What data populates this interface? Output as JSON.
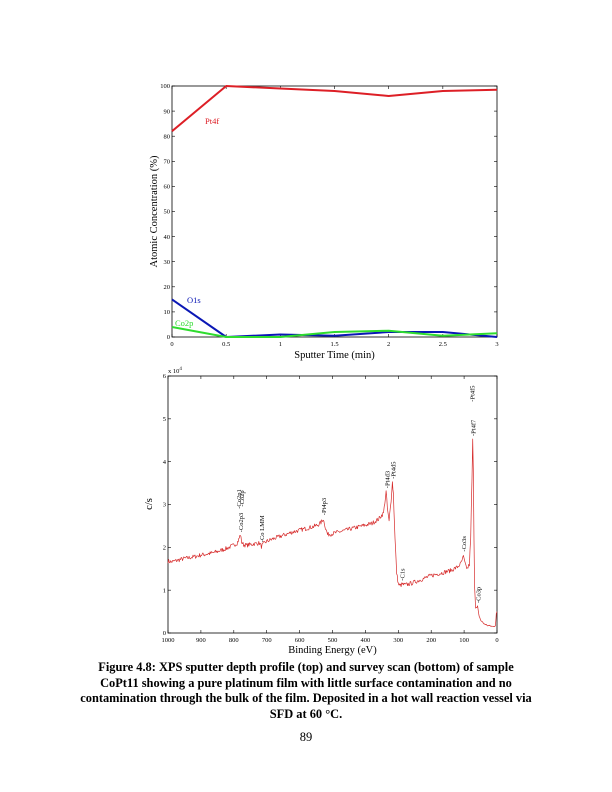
{
  "chart_data": [
    {
      "type": "line",
      "xlabel": "Sputter Time (min)",
      "ylabel": "Atomic Concentration (%)",
      "xlim": [
        0,
        3
      ],
      "ylim": [
        0,
        100
      ],
      "xticks": [
        "0",
        "0.5",
        "1",
        "1.5",
        "2",
        "2.5",
        "3"
      ],
      "yticks": [
        "0",
        "10",
        "20",
        "30",
        "40",
        "50",
        "60",
        "70",
        "80",
        "90",
        "100"
      ],
      "grid": false,
      "series": [
        {
          "name": "Pt4f",
          "color": "#dd1f26",
          "x": [
            0,
            0.5,
            1,
            1.5,
            2,
            2.5,
            3
          ],
          "y": [
            82,
            100,
            99,
            98,
            96,
            98,
            98.5
          ]
        },
        {
          "name": "O1s",
          "color": "#0a17b5",
          "x": [
            0,
            0.5,
            1,
            1.5,
            2,
            2.5,
            3
          ],
          "y": [
            15,
            0,
            1,
            0.5,
            2,
            2,
            0
          ]
        },
        {
          "name": "Co2p",
          "color": "#2fdc2f",
          "x": [
            0,
            0.5,
            1,
            1.5,
            2,
            2.5,
            3
          ],
          "y": [
            4,
            0,
            0,
            2,
            2.5,
            0.5,
            1.5
          ]
        }
      ]
    },
    {
      "type": "line",
      "xlabel": "Binding Energy (eV)",
      "ylabel": "c/s",
      "yunit_label": "x 10",
      "yunit_exp": "4",
      "xlim": [
        1000,
        0
      ],
      "ylim": [
        0,
        6
      ],
      "xticks": [
        "1000",
        "900",
        "800",
        "700",
        "600",
        "500",
        "400",
        "300",
        "200",
        "100",
        "0"
      ],
      "yticks": [
        "0",
        "1",
        "2",
        "3",
        "4",
        "5",
        "6"
      ],
      "series_color": "#d62a2a",
      "series_points": [
        [
          1000,
          1.68
        ],
        [
          990,
          1.66
        ],
        [
          970,
          1.7
        ],
        [
          950,
          1.74
        ],
        [
          920,
          1.78
        ],
        [
          900,
          1.82
        ],
        [
          870,
          1.86
        ],
        [
          850,
          1.9
        ],
        [
          820,
          1.98
        ],
        [
          800,
          2.05
        ],
        [
          790,
          2.1
        ],
        [
          785,
          2.18
        ],
        [
          780,
          2.3
        ],
        [
          776,
          2.12
        ],
        [
          770,
          2.06
        ],
        [
          760,
          2.05
        ],
        [
          740,
          2.08
        ],
        [
          722,
          2.1
        ],
        [
          716,
          2.02
        ],
        [
          710,
          2.08
        ],
        [
          700,
          2.14
        ],
        [
          680,
          2.2
        ],
        [
          650,
          2.28
        ],
        [
          620,
          2.36
        ],
        [
          600,
          2.4
        ],
        [
          580,
          2.44
        ],
        [
          560,
          2.48
        ],
        [
          545,
          2.52
        ],
        [
          535,
          2.58
        ],
        [
          528,
          2.66
        ],
        [
          522,
          2.48
        ],
        [
          515,
          2.3
        ],
        [
          500,
          2.32
        ],
        [
          470,
          2.38
        ],
        [
          440,
          2.44
        ],
        [
          410,
          2.5
        ],
        [
          380,
          2.56
        ],
        [
          360,
          2.66
        ],
        [
          345,
          2.8
        ],
        [
          337,
          3.3
        ],
        [
          333,
          2.9
        ],
        [
          328,
          2.6
        ],
        [
          322,
          3.1
        ],
        [
          318,
          3.52
        ],
        [
          315,
          3.25
        ],
        [
          310,
          2.2
        ],
        [
          305,
          1.4
        ],
        [
          300,
          1.15
        ],
        [
          295,
          1.1
        ],
        [
          288,
          1.14
        ],
        [
          280,
          1.12
        ],
        [
          260,
          1.16
        ],
        [
          240,
          1.22
        ],
        [
          220,
          1.28
        ],
        [
          200,
          1.34
        ],
        [
          180,
          1.38
        ],
        [
          160,
          1.42
        ],
        [
          140,
          1.46
        ],
        [
          120,
          1.54
        ],
        [
          110,
          1.62
        ],
        [
          102,
          1.78
        ],
        [
          96,
          1.58
        ],
        [
          90,
          1.5
        ],
        [
          84,
          1.6
        ],
        [
          80,
          2.2
        ],
        [
          76,
          3.6
        ],
        [
          74,
          4.5
        ],
        [
          72,
          3.8
        ],
        [
          70,
          2.2
        ],
        [
          68,
          1.1
        ],
        [
          65,
          0.6
        ],
        [
          62,
          0.58
        ],
        [
          59,
          0.62
        ],
        [
          56,
          0.45
        ],
        [
          50,
          0.3
        ],
        [
          40,
          0.22
        ],
        [
          30,
          0.18
        ],
        [
          20,
          0.16
        ],
        [
          10,
          0.15
        ],
        [
          5,
          0.18
        ],
        [
          3,
          0.35
        ],
        [
          2,
          0.45
        ],
        [
          0,
          0.5
        ]
      ],
      "peaks": [
        {
          "label": "-Co2p1",
          "be": 785,
          "val": 2.9
        },
        {
          "label": "-Co2p",
          "be": 777,
          "val": 2.95
        },
        {
          "label": "-Co2p3",
          "be": 780,
          "val": 2.35
        },
        {
          "label": "-Co LMM",
          "be": 716,
          "val": 2.12
        },
        {
          "label": "-Pt4p3",
          "be": 528,
          "val": 2.75
        },
        {
          "label": "-Pt4d3",
          "be": 335,
          "val": 3.38
        },
        {
          "label": "-Pt4d5",
          "be": 316,
          "val": 3.6
        },
        {
          "label": "-C1s",
          "be": 289,
          "val": 1.22
        },
        {
          "label": "-Co3s",
          "be": 102,
          "val": 1.9
        },
        {
          "label": "-Pt4f7",
          "be": 73,
          "val": 4.6
        },
        {
          "label": "-Pt4f5",
          "be": 76,
          "val": 5.4
        },
        {
          "label": "-Co3p",
          "be": 58,
          "val": 0.7
        }
      ]
    }
  ],
  "caption": "Figure 4.8: XPS sputter depth profile (top) and survey scan (bottom) of sample CoPt11 showing a pure platinum film with little surface contamination and no contamination through the bulk of the film.  Deposited in a hot wall reaction vessel via SFD at 60 °C.",
  "page_number": "89"
}
